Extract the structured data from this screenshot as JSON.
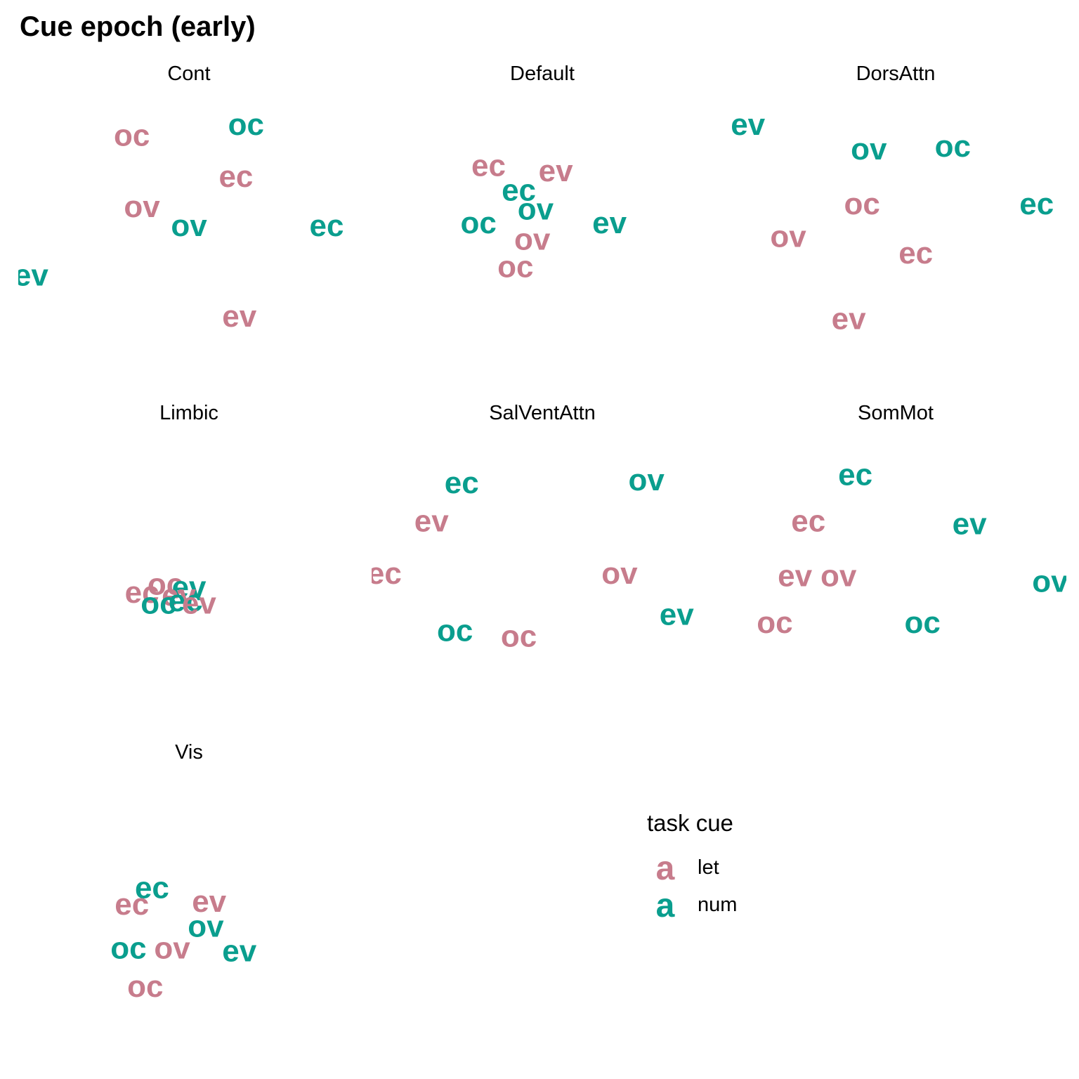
{
  "chart_data": {
    "type": "scatter",
    "title": "Cue epoch (early)",
    "point_style": "text labels",
    "xlabel": "",
    "ylabel": "",
    "grid": false,
    "legend": {
      "title": "task cue",
      "placement": "bottom-right",
      "glyph": "a",
      "entries": [
        {
          "name": "let",
          "color": "#C77C8C"
        },
        {
          "name": "num",
          "color": "#0A9E8E"
        }
      ]
    },
    "panels": [
      {
        "name": "Cont",
        "points": [
          {
            "label": "oc",
            "group": "let",
            "x": 0.33,
            "y": 0.89
          },
          {
            "label": "oc",
            "group": "num",
            "x": 0.67,
            "y": 0.93
          },
          {
            "label": "ec",
            "group": "let",
            "x": 0.64,
            "y": 0.74
          },
          {
            "label": "ov",
            "group": "let",
            "x": 0.36,
            "y": 0.63
          },
          {
            "label": "ov",
            "group": "num",
            "x": 0.5,
            "y": 0.56
          },
          {
            "label": "ec",
            "group": "num",
            "x": 0.91,
            "y": 0.56
          },
          {
            "label": "ev",
            "group": "num",
            "x": 0.03,
            "y": 0.38
          },
          {
            "label": "ev",
            "group": "let",
            "x": 0.65,
            "y": 0.23
          }
        ]
      },
      {
        "name": "Default",
        "points": [
          {
            "label": "ec",
            "group": "let",
            "x": 0.34,
            "y": 0.78
          },
          {
            "label": "ev",
            "group": "let",
            "x": 0.54,
            "y": 0.76
          },
          {
            "label": "ec",
            "group": "num",
            "x": 0.43,
            "y": 0.69
          },
          {
            "label": "ov",
            "group": "num",
            "x": 0.48,
            "y": 0.62
          },
          {
            "label": "oc",
            "group": "num",
            "x": 0.31,
            "y": 0.57
          },
          {
            "label": "ev",
            "group": "num",
            "x": 0.7,
            "y": 0.57
          },
          {
            "label": "ov",
            "group": "let",
            "x": 0.47,
            "y": 0.51
          },
          {
            "label": "oc",
            "group": "let",
            "x": 0.42,
            "y": 0.41
          }
        ]
      },
      {
        "name": "DorsAttn",
        "points": [
          {
            "label": "ev",
            "group": "num",
            "x": 0.06,
            "y": 0.93
          },
          {
            "label": "ov",
            "group": "num",
            "x": 0.42,
            "y": 0.84
          },
          {
            "label": "oc",
            "group": "num",
            "x": 0.67,
            "y": 0.85
          },
          {
            "label": "oc",
            "group": "let",
            "x": 0.4,
            "y": 0.64
          },
          {
            "label": "ec",
            "group": "num",
            "x": 0.92,
            "y": 0.64
          },
          {
            "label": "ov",
            "group": "let",
            "x": 0.18,
            "y": 0.52
          },
          {
            "label": "ec",
            "group": "let",
            "x": 0.56,
            "y": 0.46
          },
          {
            "label": "ev",
            "group": "let",
            "x": 0.36,
            "y": 0.22
          }
        ]
      },
      {
        "name": "Limbic",
        "points": [
          {
            "label": "oc",
            "group": "let",
            "x": 0.43,
            "y": 0.49
          },
          {
            "label": "ev",
            "group": "num",
            "x": 0.5,
            "y": 0.48
          },
          {
            "label": "ec",
            "group": "let",
            "x": 0.36,
            "y": 0.46
          },
          {
            "label": "ev",
            "group": "let",
            "x": 0.47,
            "y": 0.45
          },
          {
            "label": "oc",
            "group": "num",
            "x": 0.41,
            "y": 0.42
          },
          {
            "label": "ec",
            "group": "num",
            "x": 0.49,
            "y": 0.43
          },
          {
            "label": "ev",
            "group": "let",
            "x": 0.53,
            "y": 0.42
          }
        ]
      },
      {
        "name": "SalVentAttn",
        "points": [
          {
            "label": "ec",
            "group": "num",
            "x": 0.26,
            "y": 0.86
          },
          {
            "label": "ov",
            "group": "num",
            "x": 0.81,
            "y": 0.87
          },
          {
            "label": "ev",
            "group": "let",
            "x": 0.17,
            "y": 0.72
          },
          {
            "label": "ec",
            "group": "let",
            "x": 0.03,
            "y": 0.53
          },
          {
            "label": "ov",
            "group": "let",
            "x": 0.73,
            "y": 0.53
          },
          {
            "label": "ev",
            "group": "num",
            "x": 0.9,
            "y": 0.38
          },
          {
            "label": "oc",
            "group": "num",
            "x": 0.24,
            "y": 0.32
          },
          {
            "label": "oc",
            "group": "let",
            "x": 0.43,
            "y": 0.3
          }
        ]
      },
      {
        "name": "SomMot",
        "points": [
          {
            "label": "ec",
            "group": "num",
            "x": 0.38,
            "y": 0.89
          },
          {
            "label": "ec",
            "group": "let",
            "x": 0.24,
            "y": 0.72
          },
          {
            "label": "ev",
            "group": "num",
            "x": 0.72,
            "y": 0.71
          },
          {
            "label": "ev",
            "group": "let",
            "x": 0.2,
            "y": 0.52
          },
          {
            "label": "ov",
            "group": "let",
            "x": 0.33,
            "y": 0.52
          },
          {
            "label": "ov",
            "group": "num",
            "x": 0.96,
            "y": 0.5
          },
          {
            "label": "oc",
            "group": "let",
            "x": 0.14,
            "y": 0.35
          },
          {
            "label": "oc",
            "group": "num",
            "x": 0.58,
            "y": 0.35
          }
        ]
      },
      {
        "name": "Vis",
        "points": [
          {
            "label": "ec",
            "group": "num",
            "x": 0.39,
            "y": 0.62
          },
          {
            "label": "ec",
            "group": "let",
            "x": 0.33,
            "y": 0.56
          },
          {
            "label": "ev",
            "group": "let",
            "x": 0.56,
            "y": 0.57
          },
          {
            "label": "ov",
            "group": "num",
            "x": 0.55,
            "y": 0.48
          },
          {
            "label": "oc",
            "group": "num",
            "x": 0.32,
            "y": 0.4
          },
          {
            "label": "ov",
            "group": "let",
            "x": 0.45,
            "y": 0.4
          },
          {
            "label": "ev",
            "group": "num",
            "x": 0.65,
            "y": 0.39
          },
          {
            "label": "oc",
            "group": "let",
            "x": 0.37,
            "y": 0.26
          }
        ]
      }
    ]
  }
}
